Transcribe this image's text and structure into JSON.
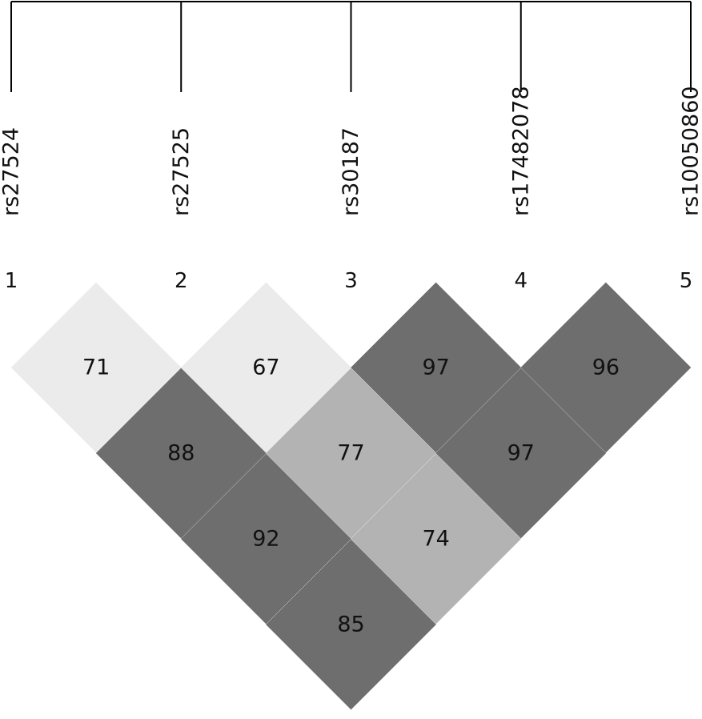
{
  "markers": [
    {
      "number": "1",
      "name": "rs27524"
    },
    {
      "number": "2",
      "name": "rs27525"
    },
    {
      "number": "3",
      "name": "rs30187"
    },
    {
      "number": "4",
      "name": "rs17482078"
    },
    {
      "number": "5",
      "name": "rs10050860"
    }
  ],
  "ld": [
    [
      71,
      88,
      92,
      85
    ],
    [
      67,
      77,
      74
    ],
    [
      97,
      97
    ],
    [
      96
    ]
  ],
  "colors": [
    [
      "#ebebeb",
      "#6e6e6e",
      "#6e6e6e",
      "#6e6e6e"
    ],
    [
      "#ebebeb",
      "#b3b3b3",
      "#b3b3b3"
    ],
    [
      "#6e6e6e",
      "#6e6e6e"
    ],
    [
      "#6e6e6e"
    ]
  ]
}
